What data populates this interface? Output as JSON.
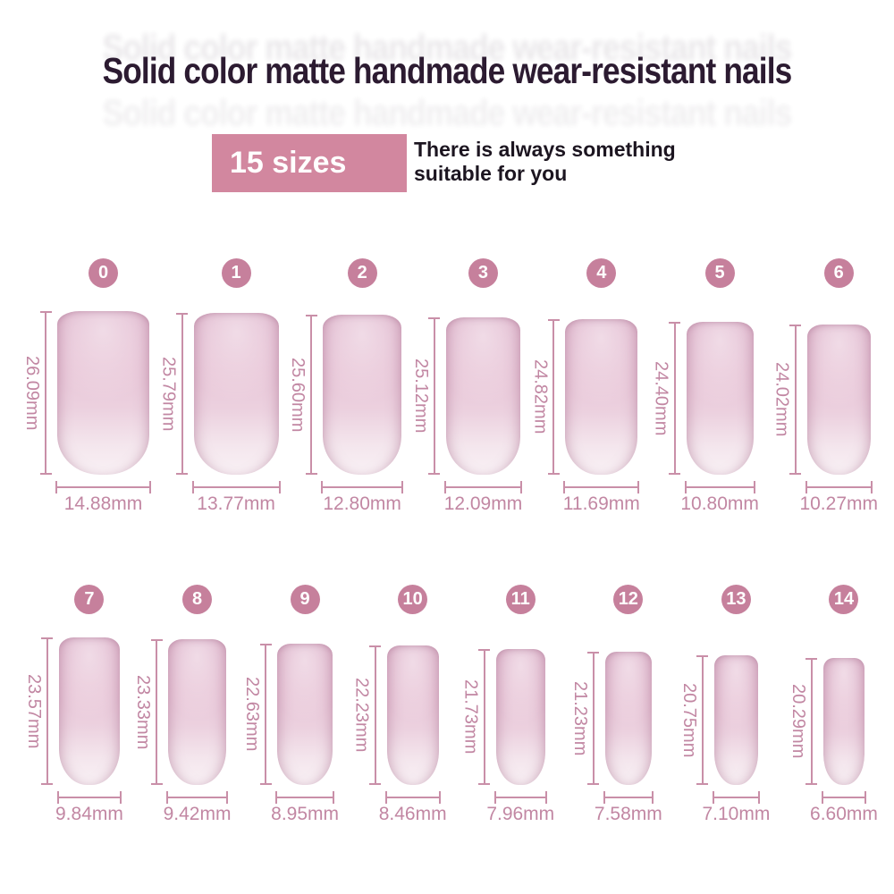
{
  "header": {
    "title": "Solid color matte handmade wear-resistant nails"
  },
  "promo": {
    "badge": "15 sizes",
    "tagline_line1": "There is always something",
    "tagline_line2": "suitable for you"
  },
  "colors": {
    "accent_pink": "#c98fa8",
    "label_pink": "#c287a3",
    "circle_pink": "#c6809c",
    "badge_pink": "#d2879f",
    "title_dark": "#2c1b31",
    "nail_pink_top": "#e2bad0",
    "nail_pink_bottom": "#f9f1f5"
  },
  "rows": [
    {
      "sizes": [
        {
          "id": "0",
          "h": "26.09mm",
          "w": "14.88mm",
          "h_mm": 26.09,
          "w_mm": 14.88
        },
        {
          "id": "1",
          "h": "25.79mm",
          "w": "13.77mm",
          "h_mm": 25.79,
          "w_mm": 13.77
        },
        {
          "id": "2",
          "h": "25.60mm",
          "w": "12.80mm",
          "h_mm": 25.6,
          "w_mm": 12.8
        },
        {
          "id": "3",
          "h": "25.12mm",
          "w": "12.09mm",
          "h_mm": 25.12,
          "w_mm": 12.09
        },
        {
          "id": "4",
          "h": "24.82mm",
          "w": "11.69mm",
          "h_mm": 24.82,
          "w_mm": 11.69
        },
        {
          "id": "5",
          "h": "24.40mm",
          "w": "10.80mm",
          "h_mm": 24.4,
          "w_mm": 10.8
        },
        {
          "id": "6",
          "h": "24.02mm",
          "w": "10.27mm",
          "h_mm": 24.02,
          "w_mm": 10.27
        }
      ]
    },
    {
      "sizes": [
        {
          "id": "7",
          "h": "23.57mm",
          "w": "9.84mm",
          "h_mm": 23.57,
          "w_mm": 9.84
        },
        {
          "id": "8",
          "h": "23.33mm",
          "w": "9.42mm",
          "h_mm": 23.33,
          "w_mm": 9.42
        },
        {
          "id": "9",
          "h": "22.63mm",
          "w": "8.95mm",
          "h_mm": 22.63,
          "w_mm": 8.95
        },
        {
          "id": "10",
          "h": "22.23mm",
          "w": "8.46mm",
          "h_mm": 22.23,
          "w_mm": 8.46
        },
        {
          "id": "11",
          "h": "21.73mm",
          "w": "7.96mm",
          "h_mm": 21.73,
          "w_mm": 7.96
        },
        {
          "id": "12",
          "h": "21.23mm",
          "w": "7.58mm",
          "h_mm": 21.23,
          "w_mm": 7.58
        },
        {
          "id": "13",
          "h": "20.75mm",
          "w": "7.10mm",
          "h_mm": 20.75,
          "w_mm": 7.1
        },
        {
          "id": "14",
          "h": "20.29mm",
          "w": "6.60mm",
          "h_mm": 20.29,
          "w_mm": 6.6
        }
      ]
    }
  ]
}
